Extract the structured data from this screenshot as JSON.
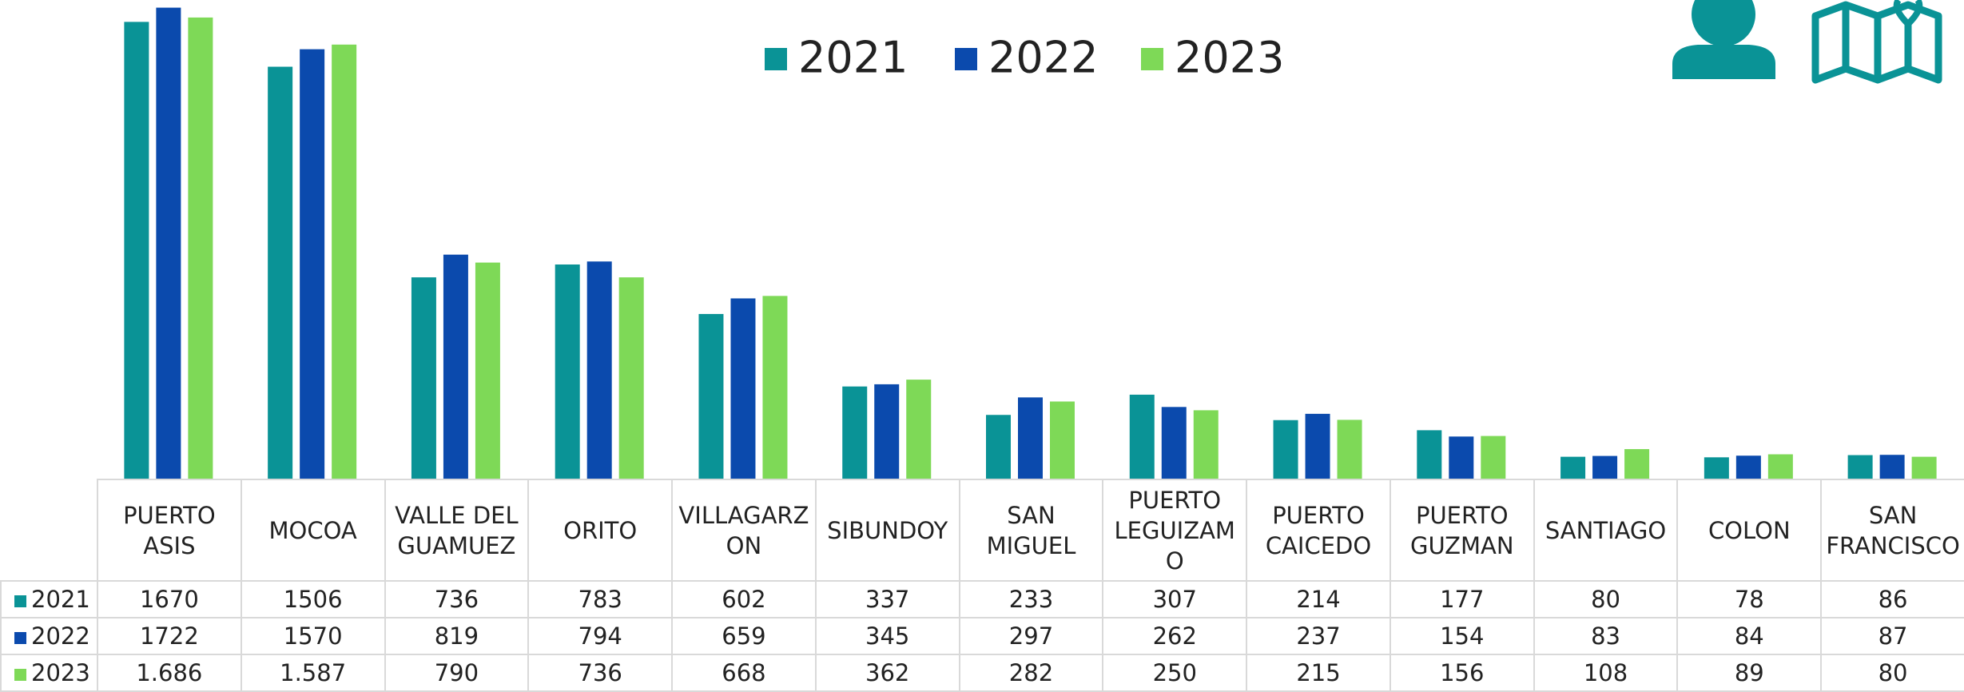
{
  "chart_data": {
    "type": "bar",
    "categories": [
      "PUERTO ASIS",
      "MOCOA",
      "VALLE DEL GUAMUEZ",
      "ORITO",
      "VILLAGARZON",
      "SIBUNDOY",
      "SAN MIGUEL",
      "PUERTO LEGUIZAMO",
      "PUERTO CAICEDO",
      "PUERTO GUZMAN",
      "SANTIAGO",
      "COLON",
      "SAN FRANCISCO"
    ],
    "series": [
      {
        "name": "2021",
        "color": "#0a9396",
        "values": [
          1670,
          1506,
          736,
          783,
          602,
          337,
          233,
          307,
          214,
          177,
          80,
          78,
          86
        ]
      },
      {
        "name": "2022",
        "color": "#0b4aad",
        "values": [
          1722,
          1570,
          819,
          794,
          659,
          345,
          297,
          262,
          237,
          154,
          83,
          84,
          87
        ]
      },
      {
        "name": "2023",
        "color": "#7ed957",
        "values": [
          1686,
          1587,
          790,
          736,
          668,
          362,
          282,
          250,
          215,
          156,
          108,
          89,
          80
        ],
        "value_labels": [
          "1.686",
          "1.587",
          "790",
          "736",
          "668",
          "362",
          "282",
          "250",
          "215",
          "156",
          "108",
          "89",
          "80"
        ]
      }
    ],
    "ylim": [
      0,
      1750
    ],
    "legend": "top"
  }
}
